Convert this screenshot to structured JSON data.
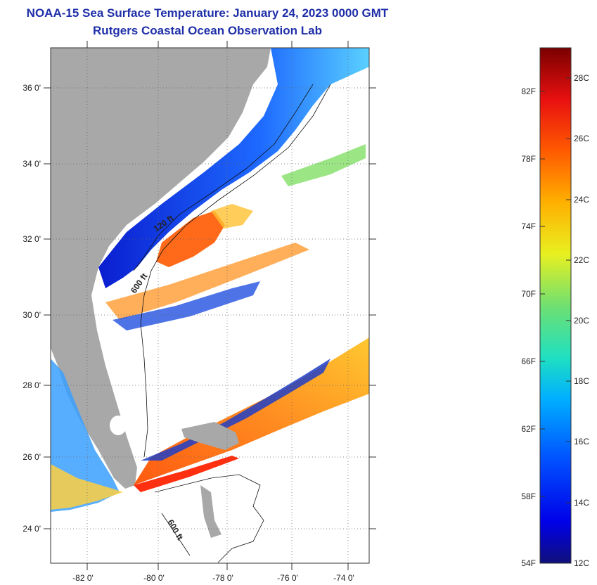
{
  "title": {
    "line1": "NOAA-15 Sea Surface Temperature:  January 24, 2023 0000 GMT",
    "line2": "Rutgers Coastal Ocean Observation Lab"
  },
  "map": {
    "lat_labels": [
      "36 0'",
      "34 0'",
      "32 0'",
      "30 0'",
      "28 0'",
      "26 0'",
      "24 0'"
    ],
    "lon_labels": [
      "-82 0'",
      "-80 0'",
      "-78 0'",
      "-76 0'",
      "-74 0'"
    ],
    "contour_labels": [
      "120 ft",
      "600 ft",
      "600 ft"
    ],
    "colors": {
      "land": "#a8a8a8",
      "cloud": "#ffffff",
      "cold": "#1030d8",
      "warm": "#ff5a14"
    }
  },
  "colorbar": {
    "fahrenheit_labels": [
      "82F",
      "78F",
      "74F",
      "70F",
      "66F",
      "62F",
      "58F",
      "54F"
    ],
    "celsius_labels": [
      "28C",
      "26C",
      "24C",
      "22C",
      "20C",
      "18C",
      "16C",
      "14C",
      "12C"
    ],
    "range_c": [
      12,
      29
    ]
  }
}
